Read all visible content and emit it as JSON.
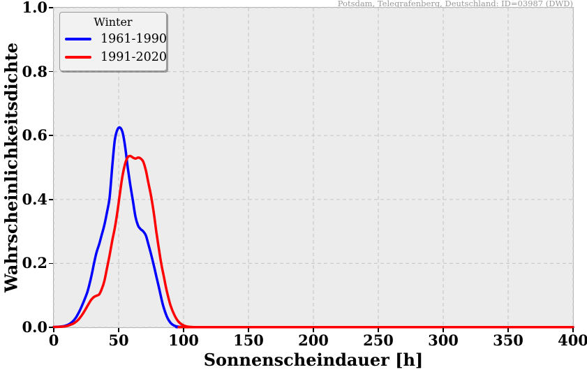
{
  "annotation": "Potsdam, Telegrafenberg, Deutschland: ID=03987 (DWD)",
  "legend": {
    "title": "Winter",
    "entries": [
      {
        "label": "1961-1990",
        "color": "#0000ff"
      },
      {
        "label": "1991-2020",
        "color": "#ff0000"
      }
    ]
  },
  "colors": {
    "plot_background": "#ececec",
    "grid": "#c9c9c9",
    "frame": "#b0b0b0",
    "series_1961_1990": "#0000ff",
    "series_1991_2020": "#ff0000",
    "annotation_text": "#999999",
    "text": "#000000"
  },
  "chart_data": {
    "type": "line",
    "title": "",
    "xlabel": "Sonnenscheindauer [h]",
    "ylabel": "Wahrscheinlichkeitsdichte",
    "xlim": [
      0,
      400
    ],
    "ylim": [
      0,
      1
    ],
    "xticks": [
      "0",
      "50",
      "100",
      "150",
      "200",
      "250",
      "300",
      "350",
      "400"
    ],
    "yticks": [
      "0.0",
      "0.2",
      "0.4",
      "0.6",
      "0.8",
      "1.0"
    ],
    "grid": true,
    "grid_style": "dashed",
    "legend_position": "upper-left",
    "legend_title": "Winter",
    "series": [
      {
        "name": "1961-1990",
        "color": "#0000ff",
        "points": [
          [
            0,
            0.001
          ],
          [
            4,
            0.002
          ],
          [
            8,
            0.004
          ],
          [
            11,
            0.008
          ],
          [
            14,
            0.016
          ],
          [
            17,
            0.03
          ],
          [
            20,
            0.052
          ],
          [
            23,
            0.08
          ],
          [
            26,
            0.112
          ],
          [
            29,
            0.16
          ],
          [
            31,
            0.2
          ],
          [
            33,
            0.235
          ],
          [
            35,
            0.26
          ],
          [
            37,
            0.29
          ],
          [
            39,
            0.32
          ],
          [
            41,
            0.36
          ],
          [
            43,
            0.405
          ],
          [
            45,
            0.5
          ],
          [
            47,
            0.585
          ],
          [
            49,
            0.618
          ],
          [
            51,
            0.625
          ],
          [
            53,
            0.61
          ],
          [
            55,
            0.565
          ],
          [
            57,
            0.5
          ],
          [
            59,
            0.445
          ],
          [
            61,
            0.395
          ],
          [
            63,
            0.345
          ],
          [
            65,
            0.318
          ],
          [
            67,
            0.307
          ],
          [
            69,
            0.3
          ],
          [
            71,
            0.287
          ],
          [
            73,
            0.258
          ],
          [
            75,
            0.228
          ],
          [
            77,
            0.195
          ],
          [
            79,
            0.16
          ],
          [
            81,
            0.125
          ],
          [
            84,
            0.072
          ],
          [
            87,
            0.035
          ],
          [
            90,
            0.014
          ],
          [
            93,
            0.005
          ],
          [
            96,
            0.002
          ],
          [
            100,
            0.001
          ],
          [
            105,
            0.0005
          ],
          [
            120,
            0.0005
          ],
          [
            400,
            0.0005
          ]
        ]
      },
      {
        "name": "1991-2020",
        "color": "#ff0000",
        "points": [
          [
            0,
            0.001
          ],
          [
            6,
            0.002
          ],
          [
            10,
            0.004
          ],
          [
            13,
            0.008
          ],
          [
            16,
            0.014
          ],
          [
            19,
            0.024
          ],
          [
            22,
            0.04
          ],
          [
            25,
            0.06
          ],
          [
            27,
            0.074
          ],
          [
            29,
            0.087
          ],
          [
            31,
            0.095
          ],
          [
            33,
            0.099
          ],
          [
            35,
            0.103
          ],
          [
            37,
            0.12
          ],
          [
            39,
            0.145
          ],
          [
            41,
            0.185
          ],
          [
            43,
            0.225
          ],
          [
            45,
            0.27
          ],
          [
            47,
            0.31
          ],
          [
            49,
            0.36
          ],
          [
            51,
            0.42
          ],
          [
            53,
            0.475
          ],
          [
            55,
            0.512
          ],
          [
            57,
            0.532
          ],
          [
            59,
            0.536
          ],
          [
            61,
            0.531
          ],
          [
            63,
            0.528
          ],
          [
            65,
            0.531
          ],
          [
            67,
            0.528
          ],
          [
            69,
            0.518
          ],
          [
            71,
            0.49
          ],
          [
            73,
            0.45
          ],
          [
            75,
            0.41
          ],
          [
            77,
            0.36
          ],
          [
            79,
            0.3
          ],
          [
            81,
            0.245
          ],
          [
            83,
            0.195
          ],
          [
            85,
            0.155
          ],
          [
            87,
            0.115
          ],
          [
            90,
            0.068
          ],
          [
            93,
            0.038
          ],
          [
            96,
            0.018
          ],
          [
            99,
            0.008
          ],
          [
            102,
            0.003
          ],
          [
            106,
            0.001
          ],
          [
            110,
            0.0005
          ],
          [
            120,
            0.0005
          ],
          [
            400,
            0.0005
          ]
        ]
      }
    ]
  }
}
